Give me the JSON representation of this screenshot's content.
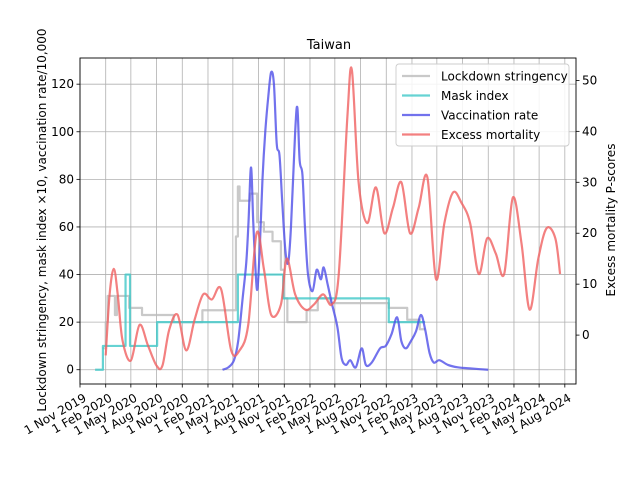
{
  "chart_data": {
    "type": "line",
    "title": "Taiwan",
    "xlabel": "",
    "ylabel_left": "Lockdown stringency, mask index ×10, vaccination rate/10,000",
    "ylabel_right": "Excess mortality P-scores",
    "ylim_left": [
      -6,
      131
    ],
    "ylim_right": [
      -9.6,
      54.4
    ],
    "yticks_left": [
      0,
      20,
      40,
      60,
      80,
      100,
      120
    ],
    "yticks_right": [
      0,
      10,
      20,
      30,
      40,
      50
    ],
    "xlim": [
      "2019-11-01",
      "2024-09-10"
    ],
    "xticks": [
      {
        "date": "2019-11-01",
        "label": "1 Nov 2019"
      },
      {
        "date": "2020-02-01",
        "label": "1 Feb 2020"
      },
      {
        "date": "2020-05-01",
        "label": "1 May 2020"
      },
      {
        "date": "2020-08-01",
        "label": "1 Aug 2020"
      },
      {
        "date": "2020-11-01",
        "label": "1 Nov 2020"
      },
      {
        "date": "2021-02-01",
        "label": "1 Feb 2021"
      },
      {
        "date": "2021-05-01",
        "label": "1 May 2021"
      },
      {
        "date": "2021-08-01",
        "label": "1 Aug 2021"
      },
      {
        "date": "2021-11-01",
        "label": "1 Nov 2021"
      },
      {
        "date": "2022-02-01",
        "label": "1 Feb 2022"
      },
      {
        "date": "2022-05-01",
        "label": "1 May 2022"
      },
      {
        "date": "2022-08-01",
        "label": "1 Aug 2022"
      },
      {
        "date": "2022-11-01",
        "label": "1 Nov 2022"
      },
      {
        "date": "2023-02-01",
        "label": "1 Feb 2023"
      },
      {
        "date": "2023-05-01",
        "label": "1 May 2023"
      },
      {
        "date": "2023-08-01",
        "label": "1 Aug 2023"
      },
      {
        "date": "2023-11-01",
        "label": "1 Nov 2023"
      },
      {
        "date": "2024-02-01",
        "label": "1 Feb 2024"
      },
      {
        "date": "2024-05-01",
        "label": "1 May 2024"
      },
      {
        "date": "2024-08-01",
        "label": "1 Aug 2024"
      }
    ],
    "grid": true,
    "legend_position": "top-right",
    "series": [
      {
        "name": "Lockdown stringency",
        "axis": "left",
        "color": "#bbbbbb",
        "step": true,
        "points": [
          [
            "2020-01-20",
            9
          ],
          [
            "2020-02-01",
            20
          ],
          [
            "2020-02-08",
            31
          ],
          [
            "2020-03-05",
            23
          ],
          [
            "2020-03-12",
            31
          ],
          [
            "2020-04-25",
            26
          ],
          [
            "2020-06-10",
            23
          ],
          [
            "2020-10-01",
            20
          ],
          [
            "2021-01-12",
            25
          ],
          [
            "2021-05-12",
            56
          ],
          [
            "2021-05-19",
            77
          ],
          [
            "2021-05-25",
            71
          ],
          [
            "2021-07-01",
            74
          ],
          [
            "2021-07-27",
            62
          ],
          [
            "2021-08-20",
            58
          ],
          [
            "2021-09-20",
            54
          ],
          [
            "2021-10-20",
            42
          ],
          [
            "2021-11-01",
            30
          ],
          [
            "2021-11-12",
            20
          ],
          [
            "2022-01-20",
            25
          ],
          [
            "2022-03-01",
            30
          ],
          [
            "2022-04-15",
            28
          ],
          [
            "2022-11-10",
            26
          ],
          [
            "2023-01-15",
            21
          ],
          [
            "2023-03-01",
            17
          ],
          [
            "2023-03-20",
            17
          ]
        ]
      },
      {
        "name": "Mask index",
        "axis": "left",
        "color": "#40c8c8",
        "step": true,
        "points": [
          [
            "2019-12-25",
            0
          ],
          [
            "2020-01-22",
            10
          ],
          [
            "2020-04-01",
            10
          ],
          [
            "2020-04-12",
            40
          ],
          [
            "2020-04-28",
            10
          ],
          [
            "2020-08-01",
            10
          ],
          [
            "2020-08-03",
            20
          ],
          [
            "2020-10-01",
            20
          ],
          [
            "2021-01-01",
            20
          ],
          [
            "2021-05-19",
            40
          ],
          [
            "2021-10-10",
            40
          ],
          [
            "2021-10-28",
            30
          ],
          [
            "2022-10-01",
            30
          ],
          [
            "2022-11-10",
            20
          ],
          [
            "2023-03-20",
            20
          ]
        ]
      },
      {
        "name": "Vaccination rate",
        "axis": "left",
        "color": "#4f4fe8",
        "step": false,
        "points": [
          [
            "2021-03-25",
            0
          ],
          [
            "2021-04-15",
            1
          ],
          [
            "2021-05-05",
            4
          ],
          [
            "2021-05-20",
            12
          ],
          [
            "2021-06-05",
            30
          ],
          [
            "2021-06-18",
            45
          ],
          [
            "2021-06-26",
            62
          ],
          [
            "2021-07-05",
            85
          ],
          [
            "2021-07-13",
            62
          ],
          [
            "2021-07-22",
            40
          ],
          [
            "2021-07-28",
            34
          ],
          [
            "2021-08-05",
            50
          ],
          [
            "2021-08-15",
            80
          ],
          [
            "2021-08-25",
            100
          ],
          [
            "2021-09-05",
            115
          ],
          [
            "2021-09-15",
            125
          ],
          [
            "2021-09-25",
            120
          ],
          [
            "2021-10-05",
            95
          ],
          [
            "2021-10-15",
            90
          ],
          [
            "2021-10-25",
            70
          ],
          [
            "2021-11-05",
            50
          ],
          [
            "2021-11-15",
            45
          ],
          [
            "2021-11-25",
            60
          ],
          [
            "2021-12-10",
            100
          ],
          [
            "2021-12-18",
            110
          ],
          [
            "2021-12-26",
            88
          ],
          [
            "2022-01-05",
            82
          ],
          [
            "2022-01-14",
            60
          ],
          [
            "2022-01-25",
            40
          ],
          [
            "2022-02-10",
            33
          ],
          [
            "2022-02-25",
            42
          ],
          [
            "2022-03-12",
            38
          ],
          [
            "2022-03-22",
            43
          ],
          [
            "2022-04-05",
            36
          ],
          [
            "2022-04-20",
            28
          ],
          [
            "2022-05-10",
            18
          ],
          [
            "2022-05-25",
            5
          ],
          [
            "2022-06-10",
            2
          ],
          [
            "2022-06-25",
            4
          ],
          [
            "2022-07-15",
            1
          ],
          [
            "2022-08-05",
            9
          ],
          [
            "2022-08-20",
            2
          ],
          [
            "2022-09-10",
            3
          ],
          [
            "2022-10-10",
            9
          ],
          [
            "2022-10-30",
            10
          ],
          [
            "2022-11-20",
            15
          ],
          [
            "2022-12-10",
            22
          ],
          [
            "2022-12-25",
            12
          ],
          [
            "2023-01-10",
            9
          ],
          [
            "2023-01-28",
            12
          ],
          [
            "2023-02-15",
            16
          ],
          [
            "2023-03-05",
            23
          ],
          [
            "2023-03-20",
            17
          ],
          [
            "2023-04-05",
            7
          ],
          [
            "2023-04-20",
            3
          ],
          [
            "2023-05-10",
            4
          ],
          [
            "2023-06-10",
            2
          ],
          [
            "2023-07-15",
            1
          ],
          [
            "2023-09-01",
            0.5
          ],
          [
            "2023-11-01",
            0
          ]
        ]
      },
      {
        "name": "Excess mortality",
        "axis": "right",
        "color": "#f06060",
        "step": false,
        "points": [
          [
            "2020-02-01",
            -4
          ],
          [
            "2020-02-15",
            8
          ],
          [
            "2020-03-01",
            13
          ],
          [
            "2020-03-15",
            8
          ],
          [
            "2020-04-01",
            -1
          ],
          [
            "2020-05-01",
            -5
          ],
          [
            "2020-06-01",
            2
          ],
          [
            "2020-07-01",
            -2
          ],
          [
            "2020-08-01",
            -6
          ],
          [
            "2020-08-22",
            -6
          ],
          [
            "2020-09-15",
            1
          ],
          [
            "2020-10-15",
            4
          ],
          [
            "2020-11-15",
            -3
          ],
          [
            "2020-12-15",
            3
          ],
          [
            "2021-01-15",
            8
          ],
          [
            "2021-02-15",
            7
          ],
          [
            "2021-03-20",
            9
          ],
          [
            "2021-04-25",
            -3
          ],
          [
            "2021-05-25",
            -3
          ],
          [
            "2021-06-25",
            2
          ],
          [
            "2021-07-25",
            20
          ],
          [
            "2021-08-20",
            13
          ],
          [
            "2021-09-15",
            4
          ],
          [
            "2021-10-20",
            6
          ],
          [
            "2021-11-10",
            15
          ],
          [
            "2021-12-10",
            8
          ],
          [
            "2022-01-15",
            5
          ],
          [
            "2022-02-15",
            6
          ],
          [
            "2022-03-20",
            8
          ],
          [
            "2022-04-20",
            6
          ],
          [
            "2022-05-15",
            12
          ],
          [
            "2022-06-15",
            43
          ],
          [
            "2022-07-01",
            52
          ],
          [
            "2022-07-25",
            30
          ],
          [
            "2022-08-25",
            22
          ],
          [
            "2022-09-25",
            29
          ],
          [
            "2022-10-25",
            20
          ],
          [
            "2022-11-25",
            25
          ],
          [
            "2022-12-25",
            30
          ],
          [
            "2023-01-25",
            20
          ],
          [
            "2023-02-25",
            25
          ],
          [
            "2023-03-28",
            31
          ],
          [
            "2023-04-28",
            11
          ],
          [
            "2023-05-28",
            22
          ],
          [
            "2023-06-28",
            28
          ],
          [
            "2023-07-28",
            26
          ],
          [
            "2023-08-28",
            22
          ],
          [
            "2023-09-28",
            12
          ],
          [
            "2023-10-28",
            19
          ],
          [
            "2023-11-28",
            16
          ],
          [
            "2023-12-28",
            12
          ],
          [
            "2024-01-28",
            27
          ],
          [
            "2024-02-28",
            18
          ],
          [
            "2024-03-28",
            5
          ],
          [
            "2024-04-28",
            15
          ],
          [
            "2024-05-28",
            21
          ],
          [
            "2024-06-28",
            19
          ],
          [
            "2024-07-15",
            12
          ]
        ]
      }
    ]
  }
}
